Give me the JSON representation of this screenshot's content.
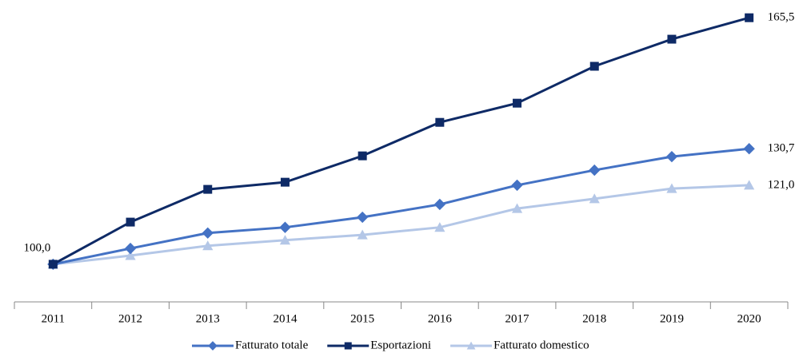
{
  "chart_data": {
    "type": "line",
    "categories": [
      "2011",
      "2012",
      "2013",
      "2014",
      "2015",
      "2016",
      "2017",
      "2018",
      "2019",
      "2020"
    ],
    "series": [
      {
        "name": "Fatturato totale",
        "color": "#4472c4",
        "marker": "diamond",
        "values": [
          100.0,
          104.2,
          108.3,
          109.8,
          112.5,
          115.9,
          121.0,
          125.0,
          128.6,
          130.7
        ],
        "value_labels": [
          "100,0",
          null,
          null,
          null,
          null,
          null,
          null,
          null,
          null,
          "130,7"
        ]
      },
      {
        "name": "Esportazioni",
        "color": "#0e2a66",
        "marker": "square",
        "values": [
          100.0,
          111.2,
          119.9,
          121.8,
          128.8,
          137.7,
          142.8,
          152.6,
          159.8,
          165.5
        ],
        "value_labels": [
          null,
          null,
          null,
          null,
          null,
          null,
          null,
          null,
          null,
          "165,5"
        ]
      },
      {
        "name": "Fatturato domestico",
        "color": "#b4c7e7",
        "marker": "triangle",
        "values": [
          100.0,
          102.3,
          104.9,
          106.4,
          107.8,
          109.8,
          114.8,
          117.4,
          120.1,
          121.0
        ],
        "value_labels": [
          null,
          null,
          null,
          null,
          null,
          null,
          null,
          null,
          null,
          "121,0"
        ]
      }
    ],
    "ylim": [
      90,
      170
    ],
    "legend": "bottom"
  }
}
